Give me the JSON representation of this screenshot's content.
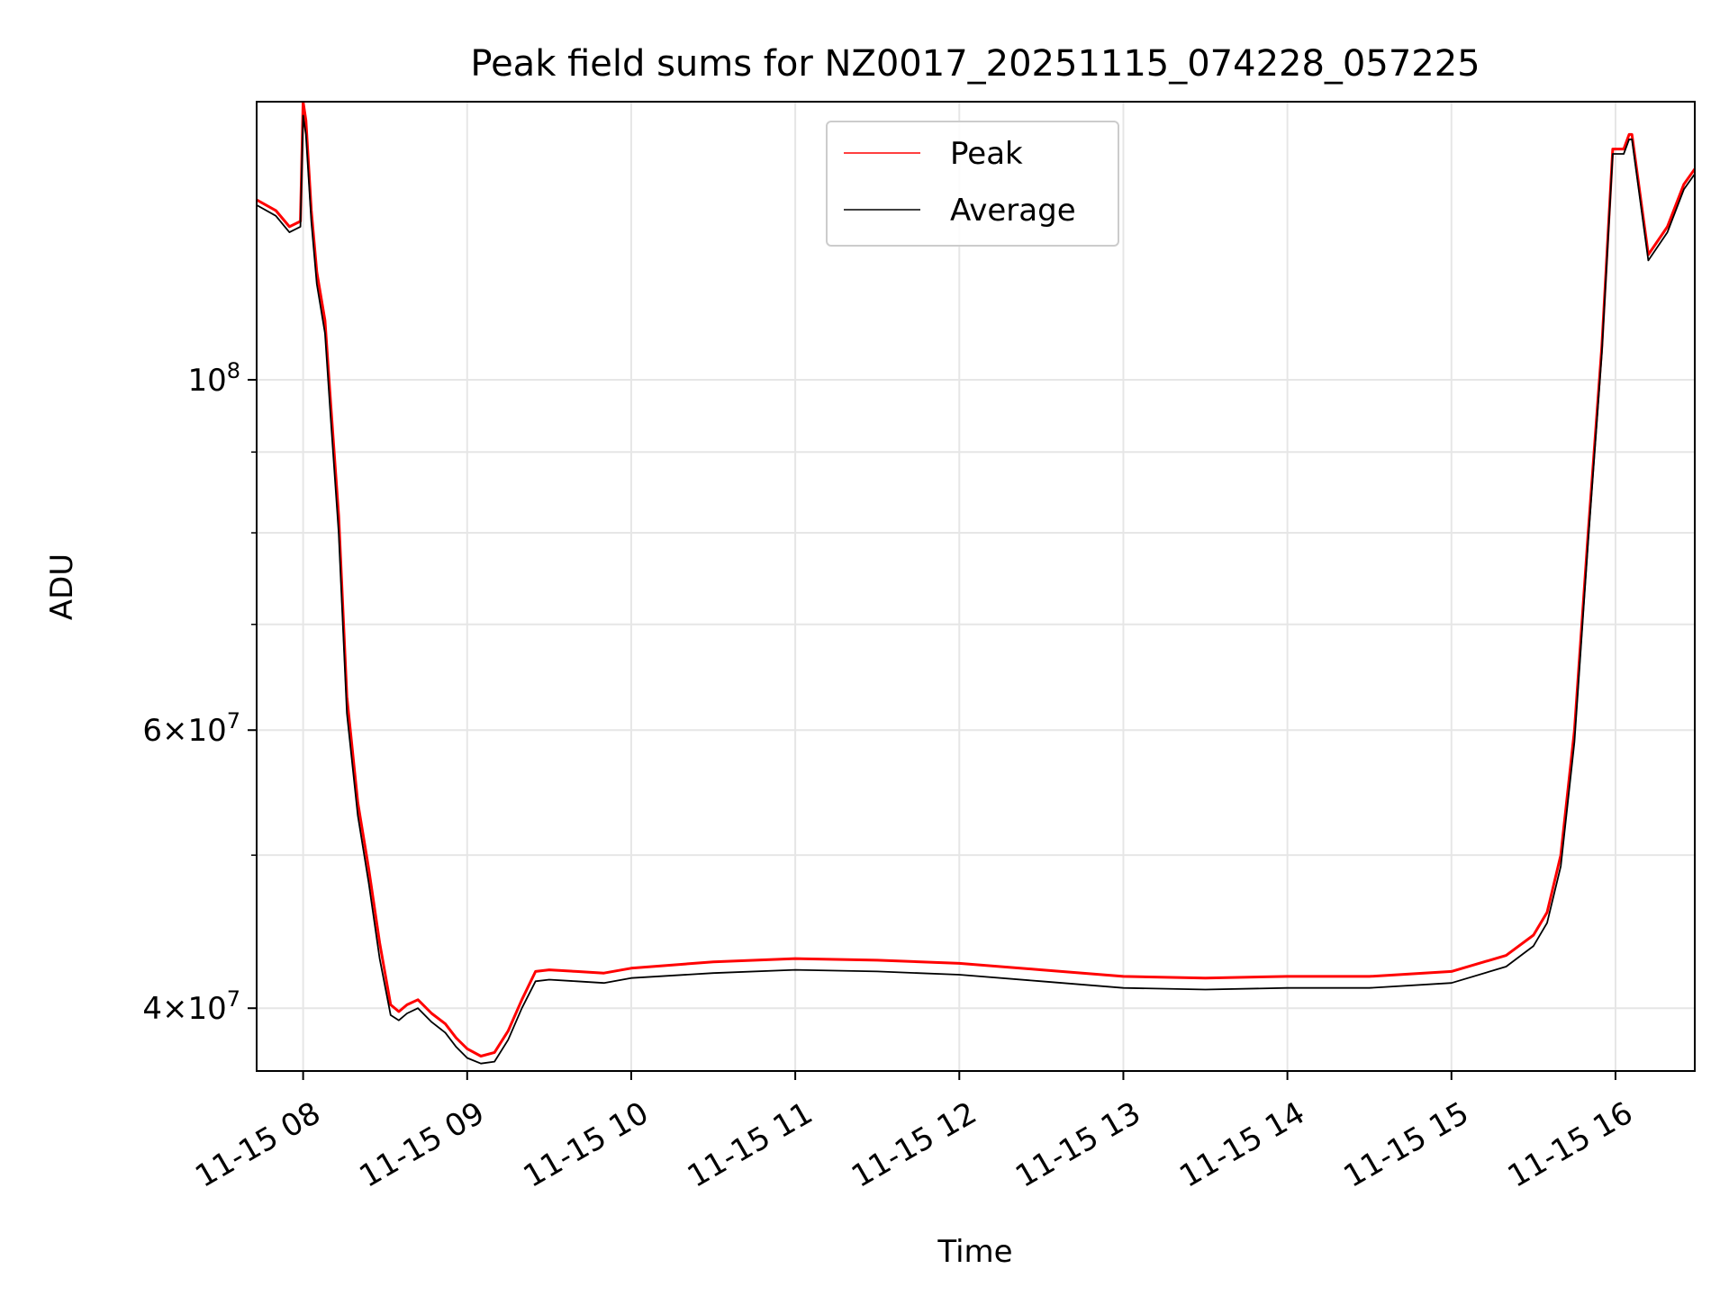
{
  "chart_data": {
    "type": "line",
    "title": "Peak field sums for NZ0017_20251115_074228_057225",
    "xlabel": "Time",
    "ylabel": "ADU",
    "yscale": "log",
    "grid": true,
    "legend_position": "upper center",
    "x_range": [
      "11-15 07:43",
      "11-15 16:29"
    ],
    "ylim": [
      36500000,
      150000000
    ],
    "x_ticks": [
      "11-15 08",
      "11-15 09",
      "11-15 10",
      "11-15 11",
      "11-15 12",
      "11-15 13",
      "11-15 14",
      "11-15 15",
      "11-15 16"
    ],
    "y_ticks": [
      {
        "value": 40000000,
        "label": "4×10^7",
        "mantissa": "4",
        "exponent": "7"
      },
      {
        "value": 60000000,
        "label": "6×10^7",
        "mantissa": "6",
        "exponent": "7"
      },
      {
        "value": 100000000,
        "label": "10^8",
        "mantissa": "",
        "exponent": "8"
      }
    ],
    "y_minor_ticks": [
      50000000,
      70000000,
      80000000,
      90000000
    ],
    "x": [
      "11-15 07:43",
      "11-15 07:50",
      "11-15 07:55",
      "11-15 07:59",
      "11-15 08:00",
      "11-15 08:01",
      "11-15 08:03",
      "11-15 08:05",
      "11-15 08:08",
      "11-15 08:10",
      "11-15 08:13",
      "11-15 08:16",
      "11-15 08:20",
      "11-15 08:24",
      "11-15 08:28",
      "11-15 08:32",
      "11-15 08:35",
      "11-15 08:38",
      "11-15 08:42",
      "11-15 08:47",
      "11-15 08:52",
      "11-15 08:56",
      "11-15 09:00",
      "11-15 09:05",
      "11-15 09:10",
      "11-15 09:15",
      "11-15 09:20",
      "11-15 09:25",
      "11-15 09:30",
      "11-15 09:40",
      "11-15 09:50",
      "11-15 10:00",
      "11-15 10:30",
      "11-15 11:00",
      "11-15 11:30",
      "11-15 12:00",
      "11-15 12:30",
      "11-15 13:00",
      "11-15 13:30",
      "11-15 14:00",
      "11-15 14:30",
      "11-15 15:00",
      "11-15 15:20",
      "11-15 15:30",
      "11-15 15:35",
      "11-15 15:40",
      "11-15 15:45",
      "11-15 15:50",
      "11-15 15:55",
      "11-15 15:59",
      "11-15 16:03",
      "11-15 16:05",
      "11-15 16:06",
      "11-15 16:12",
      "11-15 16:19",
      "11-15 16:25",
      "11-15 16:29"
    ],
    "series": [
      {
        "name": "Peak",
        "color": "#ff0000",
        "values": [
          130000000,
          128000000,
          125000000,
          126000000,
          150000000,
          146000000,
          128000000,
          117000000,
          109000000,
          97000000,
          82000000,
          63000000,
          54000000,
          49000000,
          44000000,
          40200000,
          39800000,
          40200000,
          40500000,
          39700000,
          39100000,
          38300000,
          37700000,
          37300000,
          37500000,
          38700000,
          40500000,
          42200000,
          42300000,
          42200000,
          42100000,
          42400000,
          42800000,
          43000000,
          42900000,
          42700000,
          42300000,
          41900000,
          41800000,
          41900000,
          41900000,
          42200000,
          43200000,
          44500000,
          46000000,
          50000000,
          60000000,
          80000000,
          105000000,
          140000000,
          140000000,
          143000000,
          143000000,
          120000000,
          125000000,
          133000000,
          136000000
        ]
      },
      {
        "name": "Average",
        "color": "#000000",
        "values": [
          129000000,
          127000000,
          124000000,
          125000000,
          147000000,
          143000000,
          126000000,
          115000000,
          107000000,
          95000000,
          80000000,
          61500000,
          53000000,
          48000000,
          43000000,
          39600000,
          39300000,
          39700000,
          40000000,
          39200000,
          38600000,
          37800000,
          37200000,
          36900000,
          37000000,
          38200000,
          40000000,
          41600000,
          41700000,
          41600000,
          41500000,
          41800000,
          42100000,
          42300000,
          42200000,
          42000000,
          41600000,
          41200000,
          41100000,
          41200000,
          41200000,
          41500000,
          42500000,
          43800000,
          45300000,
          49200000,
          59000000,
          79000000,
          104000000,
          139000000,
          139000000,
          142000000,
          142000000,
          119000000,
          124000000,
          132000000,
          135000000
        ]
      }
    ]
  }
}
